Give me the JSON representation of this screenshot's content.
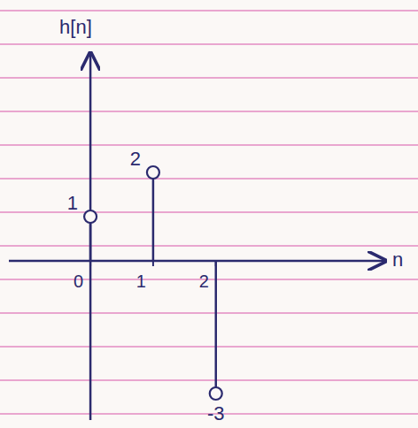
{
  "chart_data": {
    "type": "stem",
    "xlabel": "n",
    "ylabel": "h[n]",
    "x": [
      0,
      1,
      2
    ],
    "values": [
      1,
      2,
      -3
    ],
    "xlim": [
      -1.3,
      4.7
    ],
    "xticks": [
      0,
      1,
      2
    ],
    "ylim": [
      -3.6,
      4.7
    ],
    "tick_labels": "x",
    "data_labels": true,
    "marker": "circle_open",
    "color": "#2b2a6e"
  }
}
